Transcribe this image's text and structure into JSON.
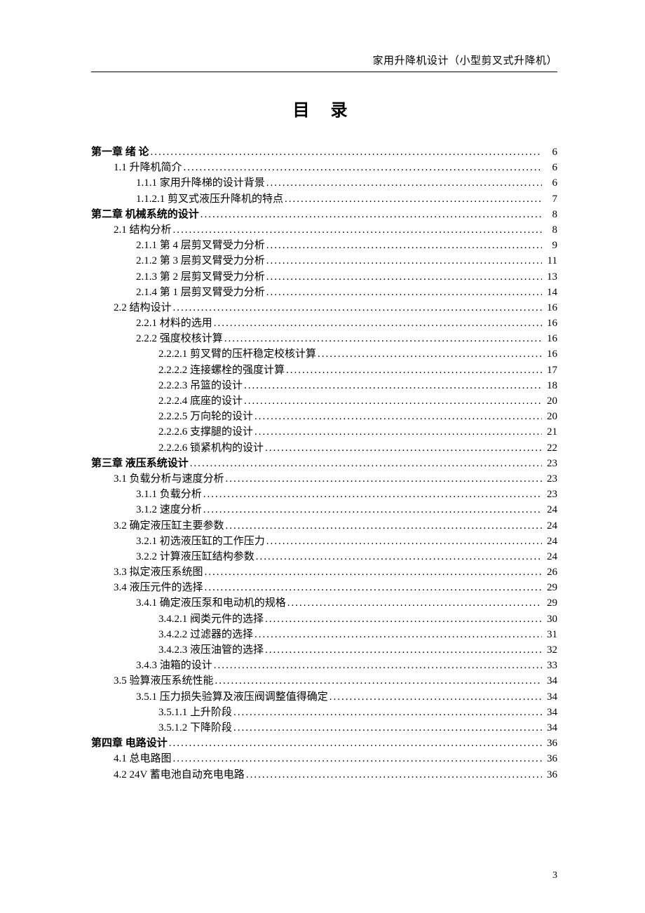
{
  "running_head": "家用升降机设计（小型剪叉式升降机）",
  "title": "目  录",
  "page_number": "3",
  "toc": [
    {
      "level": 0,
      "bold": true,
      "label": "第一章 绪 论",
      "page": "6"
    },
    {
      "level": 1,
      "bold": false,
      "label": "1.1 升降机简介",
      "page": "6"
    },
    {
      "level": 2,
      "bold": false,
      "label": "1.1.1 家用升降梯的设计背景",
      "page": "6"
    },
    {
      "level": 2,
      "bold": false,
      "label": "1.1.2.1 剪叉式液压升降机的特点",
      "page": "7"
    },
    {
      "level": 0,
      "bold": true,
      "label": "第二章  机械系统的设计",
      "page": "8"
    },
    {
      "level": 1,
      "bold": false,
      "label": "2.1 结构分析",
      "page": "8"
    },
    {
      "level": 2,
      "bold": false,
      "label": "2.1.1 第 4 层剪叉臂受力分析",
      "page": "9"
    },
    {
      "level": 2,
      "bold": false,
      "label": "2.1.2 第 3 层剪叉臂受力分析",
      "page": "11"
    },
    {
      "level": 2,
      "bold": false,
      "label": "2.1.3 第 2 层剪叉臂受力分析",
      "page": "13"
    },
    {
      "level": 2,
      "bold": false,
      "label": "2.1.4 第 1 层剪叉臂受力分析",
      "page": "14"
    },
    {
      "level": 1,
      "bold": false,
      "label": "2.2 结构设计",
      "page": "16"
    },
    {
      "level": 2,
      "bold": false,
      "label": "2.2.1 材料的选用",
      "page": "16"
    },
    {
      "level": 2,
      "bold": false,
      "label": "2.2.2 强度校核计算",
      "page": "16"
    },
    {
      "level": 3,
      "bold": false,
      "label": "2.2.2.1 剪叉臂的压杆稳定校核计算",
      "page": "16"
    },
    {
      "level": 3,
      "bold": false,
      "label": "2.2.2.2 连接螺栓的强度计算",
      "page": "17"
    },
    {
      "level": 3,
      "bold": false,
      "label": "2.2.2.3 吊篮的设计",
      "page": "18"
    },
    {
      "level": 3,
      "bold": false,
      "label": "2.2.2.4 底座的设计",
      "page": "20"
    },
    {
      "level": 3,
      "bold": false,
      "label": "2.2.2.5 万向轮的设计",
      "page": "20"
    },
    {
      "level": 3,
      "bold": false,
      "label": "2.2.2.6 支撑腿的设计",
      "page": "21"
    },
    {
      "level": 3,
      "bold": false,
      "label": "2.2.2.6 锁紧机构的设计",
      "page": "22"
    },
    {
      "level": 0,
      "bold": true,
      "label": "第三章  液压系统设计",
      "page": "23"
    },
    {
      "level": 1,
      "bold": false,
      "label": "3.1 负载分析与速度分析",
      "page": "23"
    },
    {
      "level": 2,
      "bold": false,
      "label": "3.1.1 负载分析",
      "page": "23"
    },
    {
      "level": 2,
      "bold": false,
      "label": "3.1.2 速度分析",
      "page": "24"
    },
    {
      "level": 1,
      "bold": false,
      "label": "3.2 确定液压缸主要参数",
      "page": "24"
    },
    {
      "level": 2,
      "bold": false,
      "label": "3.2.1 初选液压缸的工作压力",
      "page": "24"
    },
    {
      "level": 2,
      "bold": false,
      "label": "3.2.2 计算液压缸结构参数",
      "page": "24"
    },
    {
      "level": 1,
      "bold": false,
      "label": "3.3 拟定液压系统图",
      "page": "26"
    },
    {
      "level": 1,
      "bold": false,
      "label": "3.4 液压元件的选择",
      "page": "29"
    },
    {
      "level": 2,
      "bold": false,
      "label": "3.4.1 确定液压泵和电动机的规格",
      "page": "29"
    },
    {
      "level": 3,
      "bold": false,
      "label": "3.4.2.1 阀类元件的选择",
      "page": "30"
    },
    {
      "level": 3,
      "bold": false,
      "label": "3.4.2.2 过滤器的选择",
      "page": "31"
    },
    {
      "level": 3,
      "bold": false,
      "label": "3.4.2.3 液压油管的选择",
      "page": "32"
    },
    {
      "level": 2,
      "bold": false,
      "label": "3.4.3 油箱的设计",
      "page": "33"
    },
    {
      "level": 1,
      "bold": false,
      "label": "3.5 验算液压系统性能",
      "page": "34"
    },
    {
      "level": 2,
      "bold": false,
      "label": "3.5.1 压力损失验算及液压阀调整值得确定",
      "page": "34"
    },
    {
      "level": 3,
      "bold": false,
      "label": "3.5.1.1 上升阶段",
      "page": "34"
    },
    {
      "level": 3,
      "bold": false,
      "label": "3.5.1.2 下降阶段",
      "page": "34"
    },
    {
      "level": 0,
      "bold": true,
      "label": "第四章  电路设计",
      "page": "36"
    },
    {
      "level": 1,
      "bold": false,
      "label": "4.1 总电路图",
      "page": "36"
    },
    {
      "level": 1,
      "bold": false,
      "label": "4.2 24V 蓄电池自动充电电路",
      "page": "36"
    }
  ]
}
